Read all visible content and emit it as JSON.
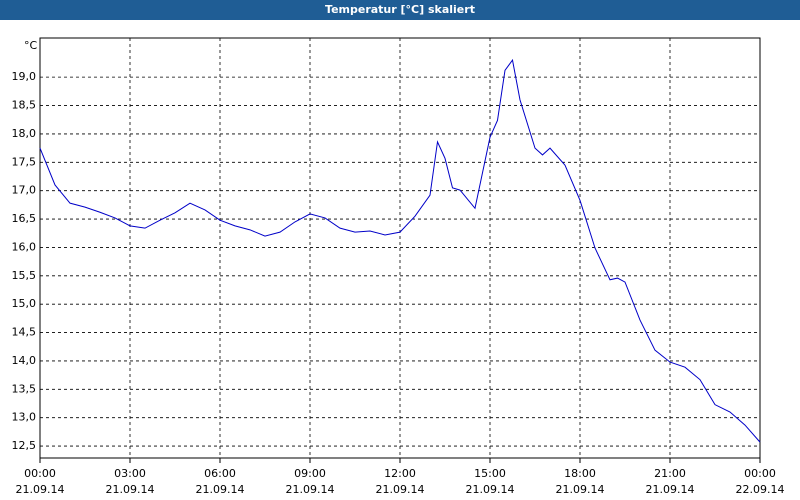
{
  "chart_data": {
    "type": "line",
    "title": "Temperatur [°C] skaliert",
    "y_unit": "°C",
    "x": [
      0,
      0.5,
      1,
      1.5,
      2,
      2.5,
      3,
      3.5,
      4,
      4.5,
      5,
      5.5,
      6,
      6.5,
      7,
      7.5,
      8,
      8.5,
      9,
      9.5,
      10,
      10.5,
      11,
      11.5,
      12,
      12.5,
      13,
      13.25,
      13.5,
      13.75,
      14,
      14.5,
      15,
      15.25,
      15.5,
      15.75,
      16,
      16.5,
      16.75,
      17,
      17.5,
      18,
      18.5,
      19,
      19.25,
      19.5,
      20,
      20.5,
      21,
      21.5,
      22,
      22.5,
      23,
      23.5,
      24
    ],
    "series": [
      {
        "color": "#0000c8",
        "values": [
          17.75,
          17.1,
          16.78,
          16.71,
          16.62,
          16.52,
          16.38,
          16.34,
          16.48,
          16.61,
          16.78,
          16.66,
          16.48,
          16.38,
          16.31,
          16.2,
          16.27,
          16.45,
          16.59,
          16.52,
          16.34,
          16.27,
          16.29,
          16.22,
          16.27,
          16.55,
          16.92,
          17.86,
          17.57,
          17.05,
          17.01,
          16.69,
          17.94,
          18.24,
          19.12,
          19.3,
          18.6,
          17.75,
          17.63,
          17.75,
          17.45,
          16.83,
          15.99,
          15.43,
          15.46,
          15.39,
          14.72,
          14.19,
          13.98,
          13.89,
          13.67,
          13.23,
          13.1,
          12.87,
          12.57
        ]
      }
    ],
    "xlim": [
      0,
      24
    ],
    "xticks": [
      {
        "value": 0,
        "label": "00:00"
      },
      {
        "value": 3,
        "label": "03:00"
      },
      {
        "value": 6,
        "label": "06:00"
      },
      {
        "value": 9,
        "label": "09:00"
      },
      {
        "value": 12,
        "label": "12:00"
      },
      {
        "value": 15,
        "label": "15:00"
      },
      {
        "value": 18,
        "label": "18:00"
      },
      {
        "value": 21,
        "label": "21:00"
      },
      {
        "value": 24,
        "label": "00:00"
      }
    ],
    "xtick_dates": [
      "21.09.14",
      "21.09.14",
      "21.09.14",
      "21.09.14",
      "21.09.14",
      "21.09.14",
      "21.09.14",
      "21.09.14",
      "22.09.14"
    ],
    "ylim": [
      12.29,
      19.69
    ],
    "yticks": [
      {
        "value": 12.5,
        "label": "12,5"
      },
      {
        "value": 13,
        "label": "13,0"
      },
      {
        "value": 13.5,
        "label": "13,5"
      },
      {
        "value": 14,
        "label": "14,0"
      },
      {
        "value": 14.5,
        "label": "14,5"
      },
      {
        "value": 15,
        "label": "15,0"
      },
      {
        "value": 15.5,
        "label": "15,5"
      },
      {
        "value": 16,
        "label": "16,0"
      },
      {
        "value": 16.5,
        "label": "16,5"
      },
      {
        "value": 17,
        "label": "17,0"
      },
      {
        "value": 17.5,
        "label": "17,5"
      },
      {
        "value": 18,
        "label": "18,0"
      },
      {
        "value": 18.5,
        "label": "18,5"
      },
      {
        "value": 19,
        "label": "19,0"
      }
    ],
    "grid": true
  }
}
